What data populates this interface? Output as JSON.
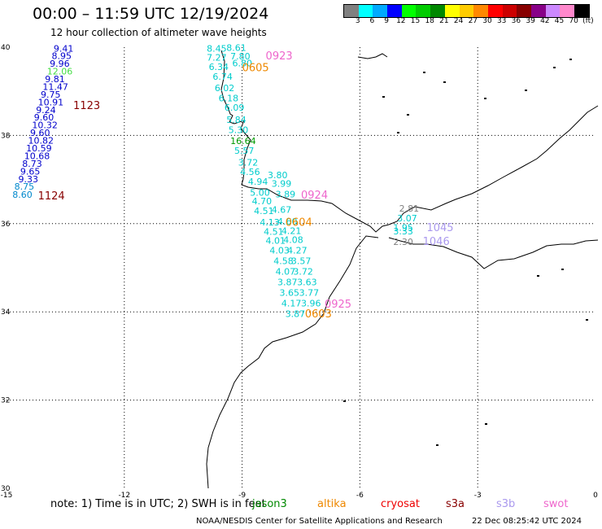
{
  "header": {
    "title": "00:00 – 11:59 UTC 12/19/2024",
    "subtitle": "12 hour collection of altimeter wave heights"
  },
  "colorbar": {
    "colors": [
      "#808080",
      "#00ffff",
      "#00aaff",
      "#0000ff",
      "#00ff00",
      "#00cc00",
      "#008800",
      "#ffff00",
      "#ffcc00",
      "#ff8800",
      "#ff0000",
      "#cc0000",
      "#880000",
      "#880088",
      "#cc88ff",
      "#ff88cc",
      "#000000"
    ],
    "labels": [
      "3",
      "6",
      "9",
      "12",
      "15",
      "18",
      "21",
      "24",
      "27",
      "30",
      "33",
      "36",
      "39",
      "42",
      "45",
      "70",
      "(ft)"
    ]
  },
  "map": {
    "lat_ticks": [
      "40",
      "38",
      "36",
      "34",
      "32",
      "30"
    ],
    "lon_ticks": [
      "-15",
      "-12",
      "-9",
      "-6",
      "-3",
      "0"
    ],
    "wave_labels": [
      {
        "text": "9.41",
        "color": "#0000cc",
        "lon": -13.8,
        "lat": 39.9
      },
      {
        "text": "8.95",
        "color": "#0000cc",
        "lon": -13.85,
        "lat": 39.73
      },
      {
        "text": "9.96",
        "color": "#0000cc",
        "lon": -13.9,
        "lat": 39.56
      },
      {
        "text": "12.06",
        "color": "#44dd44",
        "lon": -13.97,
        "lat": 39.38
      },
      {
        "text": "9.81",
        "color": "#0000cc",
        "lon": -14.02,
        "lat": 39.21
      },
      {
        "text": "11.47",
        "color": "#0000cc",
        "lon": -14.08,
        "lat": 39.03
      },
      {
        "text": "9.75",
        "color": "#0000cc",
        "lon": -14.13,
        "lat": 38.86
      },
      {
        "text": "10.91",
        "color": "#0000cc",
        "lon": -14.2,
        "lat": 38.68
      },
      {
        "text": "9.24",
        "color": "#0000cc",
        "lon": -14.25,
        "lat": 38.51
      },
      {
        "text": "9.60",
        "color": "#0000cc",
        "lon": -14.3,
        "lat": 38.34
      },
      {
        "text": "10.32",
        "color": "#0000cc",
        "lon": -14.35,
        "lat": 38.16
      },
      {
        "text": "9.60",
        "color": "#0000cc",
        "lon": -14.4,
        "lat": 37.99
      },
      {
        "text": "10.82",
        "color": "#0000cc",
        "lon": -14.45,
        "lat": 37.81
      },
      {
        "text": "10.59",
        "color": "#0000cc",
        "lon": -14.5,
        "lat": 37.64
      },
      {
        "text": "10.68",
        "color": "#0000cc",
        "lon": -14.55,
        "lat": 37.46
      },
      {
        "text": "8.73",
        "color": "#0000cc",
        "lon": -14.6,
        "lat": 37.29
      },
      {
        "text": "9.65",
        "color": "#0000cc",
        "lon": -14.65,
        "lat": 37.11
      },
      {
        "text": "9.33",
        "color": "#0000cc",
        "lon": -14.7,
        "lat": 36.94
      },
      {
        "text": "8.75",
        "color": "#0088cc",
        "lon": -14.8,
        "lat": 36.77
      },
      {
        "text": "8.60",
        "color": "#0088cc",
        "lon": -14.85,
        "lat": 36.59
      },
      {
        "text": "1123",
        "color": "#880000",
        "lon": -13.3,
        "lat": 38.6,
        "big": true
      },
      {
        "text": "1124",
        "color": "#880000",
        "lon": -14.2,
        "lat": 36.55,
        "big": true
      },
      {
        "text": "8.45",
        "color": "#00cccc",
        "lon": -9.9,
        "lat": 39.9
      },
      {
        "text": "8.61",
        "color": "#00cccc",
        "lon": -9.4,
        "lat": 39.92
      },
      {
        "text": "7.27",
        "color": "#00cccc",
        "lon": -9.9,
        "lat": 39.7
      },
      {
        "text": "7.80",
        "color": "#00cccc",
        "lon": -9.3,
        "lat": 39.72
      },
      {
        "text": "6.80",
        "color": "#00cccc",
        "lon": -9.25,
        "lat": 39.57
      },
      {
        "text": "0923",
        "color": "#ee66cc",
        "lon": -8.4,
        "lat": 39.72,
        "big": true
      },
      {
        "text": "6.34",
        "color": "#00cccc",
        "lon": -9.85,
        "lat": 39.48
      },
      {
        "text": "0605",
        "color": "#ee8800",
        "lon": -9.0,
        "lat": 39.46,
        "big": true
      },
      {
        "text": "6.74",
        "color": "#00cccc",
        "lon": -9.75,
        "lat": 39.26
      },
      {
        "text": "6.02",
        "color": "#00cccc",
        "lon": -9.7,
        "lat": 39.0
      },
      {
        "text": "6.18",
        "color": "#00cccc",
        "lon": -9.6,
        "lat": 38.77
      },
      {
        "text": "6.09",
        "color": "#00cccc",
        "lon": -9.45,
        "lat": 38.56
      },
      {
        "text": "5.84",
        "color": "#00cccc",
        "lon": -9.4,
        "lat": 38.28
      },
      {
        "text": "5.30",
        "color": "#00cccc",
        "lon": -9.35,
        "lat": 38.05
      },
      {
        "text": "16.64",
        "color": "#009900",
        "lon": -9.3,
        "lat": 37.8
      },
      {
        "text": "5.57",
        "color": "#00cccc",
        "lon": -9.2,
        "lat": 37.58
      },
      {
        "text": "3.72",
        "color": "#00cccc",
        "lon": -9.1,
        "lat": 37.32
      },
      {
        "text": "4.56",
        "color": "#00cccc",
        "lon": -9.05,
        "lat": 37.1
      },
      {
        "text": "3.80",
        "color": "#00cccc",
        "lon": -8.35,
        "lat": 37.03
      },
      {
        "text": "4.94",
        "color": "#00cccc",
        "lon": -8.85,
        "lat": 36.88
      },
      {
        "text": "3.99",
        "color": "#00cccc",
        "lon": -8.25,
        "lat": 36.84
      },
      {
        "text": "5.00",
        "color": "#00cccc",
        "lon": -8.8,
        "lat": 36.63
      },
      {
        "text": "3.89",
        "color": "#00cccc",
        "lon": -8.15,
        "lat": 36.6
      },
      {
        "text": "0924",
        "color": "#ee66cc",
        "lon": -7.5,
        "lat": 36.57,
        "big": true
      },
      {
        "text": "4.70",
        "color": "#00cccc",
        "lon": -8.75,
        "lat": 36.44
      },
      {
        "text": "4.51",
        "color": "#00cccc",
        "lon": -8.7,
        "lat": 36.22
      },
      {
        "text": "4.67",
        "color": "#00cccc",
        "lon": -8.25,
        "lat": 36.25
      },
      {
        "text": "4.13",
        "color": "#00cccc",
        "lon": -8.55,
        "lat": 35.96
      },
      {
        "text": "4.60",
        "color": "#00cccc",
        "lon": -8.1,
        "lat": 35.98
      },
      {
        "text": "0604",
        "color": "#ee8800",
        "lon": -7.9,
        "lat": 35.95,
        "big": true
      },
      {
        "text": "4.51",
        "color": "#00cccc",
        "lon": -8.45,
        "lat": 35.75
      },
      {
        "text": "4.21",
        "color": "#00cccc",
        "lon": -8.0,
        "lat": 35.77
      },
      {
        "text": "4.01",
        "color": "#00cccc",
        "lon": -8.4,
        "lat": 35.54
      },
      {
        "text": "4.08",
        "color": "#00cccc",
        "lon": -7.95,
        "lat": 35.56
      },
      {
        "text": "4.03",
        "color": "#00cccc",
        "lon": -8.3,
        "lat": 35.32
      },
      {
        "text": "4.27",
        "color": "#00cccc",
        "lon": -7.85,
        "lat": 35.32
      },
      {
        "text": "4.58",
        "color": "#00cccc",
        "lon": -8.2,
        "lat": 35.08
      },
      {
        "text": "3.57",
        "color": "#00cccc",
        "lon": -7.75,
        "lat": 35.08
      },
      {
        "text": "4.07",
        "color": "#00cccc",
        "lon": -8.15,
        "lat": 34.84
      },
      {
        "text": "3.72",
        "color": "#00cccc",
        "lon": -7.7,
        "lat": 34.84
      },
      {
        "text": "3.87",
        "color": "#00cccc",
        "lon": -8.1,
        "lat": 34.6
      },
      {
        "text": "3.63",
        "color": "#00cccc",
        "lon": -7.6,
        "lat": 34.6
      },
      {
        "text": "3.65",
        "color": "#00cccc",
        "lon": -8.05,
        "lat": 34.36
      },
      {
        "text": "3.77",
        "color": "#00cccc",
        "lon": -7.55,
        "lat": 34.36
      },
      {
        "text": "4.17",
        "color": "#00cccc",
        "lon": -8.0,
        "lat": 34.12
      },
      {
        "text": "3.96",
        "color": "#00cccc",
        "lon": -7.5,
        "lat": 34.12
      },
      {
        "text": "0925",
        "color": "#ee66cc",
        "lon": -6.9,
        "lat": 34.1,
        "big": true
      },
      {
        "text": "3.87",
        "color": "#00cccc",
        "lon": -7.9,
        "lat": 33.88
      },
      {
        "text": "0603",
        "color": "#ee8800",
        "lon": -7.4,
        "lat": 33.87,
        "big": true
      },
      {
        "text": "2.81",
        "color": "#808080",
        "lon": -5.0,
        "lat": 36.27
      },
      {
        "text": "3.07",
        "color": "#00cccc",
        "lon": -5.05,
        "lat": 36.05
      },
      {
        "text": "1.95",
        "color": "#00cccc",
        "lon": -5.15,
        "lat": 35.84
      },
      {
        "text": "3.33",
        "color": "#00cccc",
        "lon": -5.15,
        "lat": 35.76
      },
      {
        "text": "2.30",
        "color": "#808080",
        "lon": -5.15,
        "lat": 35.52
      },
      {
        "text": "1045",
        "color": "#aa99ee",
        "lon": -4.3,
        "lat": 35.83,
        "big": true
      },
      {
        "text": "1046",
        "color": "#aa99ee",
        "lon": -4.4,
        "lat": 35.52,
        "big": true
      }
    ]
  },
  "footer": {
    "note": "note:  1) Time is in UTC;  2) SWH is in feet",
    "satellites": [
      {
        "name": "jason3",
        "color": "#008800"
      },
      {
        "name": "altika",
        "color": "#ee8800"
      },
      {
        "name": "cryosat",
        "color": "#ee0000"
      },
      {
        "name": "s3a",
        "color": "#880000"
      },
      {
        "name": "s3b",
        "color": "#aa99ee"
      },
      {
        "name": "swot",
        "color": "#ee66cc"
      }
    ],
    "credit": "NOAA/NESDIS Center for Satellite Applications and Research",
    "timestamp": "22 Dec 08:25:42 UTC 2024"
  }
}
